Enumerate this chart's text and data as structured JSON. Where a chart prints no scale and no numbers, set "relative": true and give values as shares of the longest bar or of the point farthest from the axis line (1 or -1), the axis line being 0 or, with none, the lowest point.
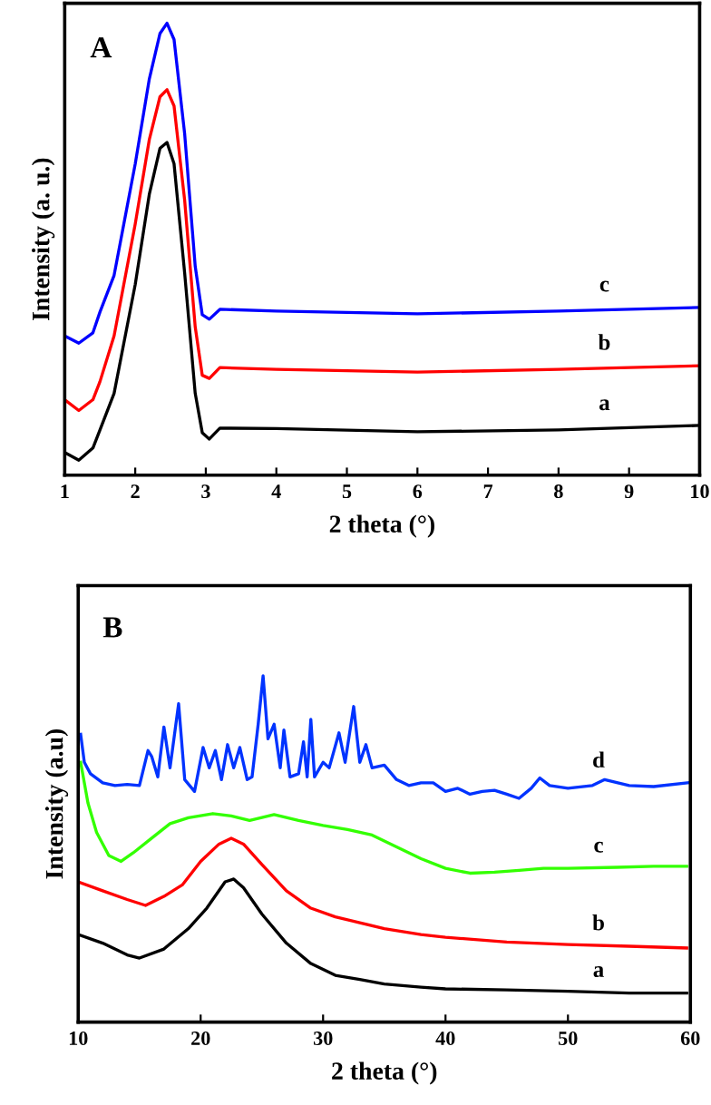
{
  "chart_data": [
    {
      "type": "line",
      "title": "A",
      "xlabel": "2 theta (°)",
      "ylabel": "Intensity (a. u.)",
      "relative": true,
      "tick_labels": "x",
      "grid": false,
      "legend": false,
      "xlim": [
        1,
        10
      ],
      "xticks": [
        1,
        2,
        3,
        4,
        5,
        6,
        7,
        8,
        9,
        10
      ],
      "series": [
        {
          "name": "a",
          "color": "#000000",
          "x": [
            1,
            1.2,
            1.4,
            1.5,
            1.7,
            2.0,
            2.2,
            2.35,
            2.45,
            2.55,
            2.7,
            2.85,
            2.95,
            3.05,
            3.2,
            4,
            6,
            8,
            10
          ],
          "values": [
            0.05,
            0.033,
            0.06,
            0.1,
            0.181,
            0.422,
            0.622,
            0.723,
            0.736,
            0.689,
            0.448,
            0.181,
            0.094,
            0.08,
            0.104,
            0.103,
            0.096,
            0.1,
            0.11
          ]
        },
        {
          "name": "b",
          "color": "#ff0000",
          "x": [
            1,
            1.2,
            1.4,
            1.5,
            1.7,
            2.0,
            2.2,
            2.35,
            2.45,
            2.55,
            2.7,
            2.85,
            2.95,
            3.05,
            3.2,
            4,
            6,
            8,
            10
          ],
          "values": [
            0.167,
            0.143,
            0.167,
            0.207,
            0.308,
            0.556,
            0.743,
            0.837,
            0.853,
            0.817,
            0.609,
            0.328,
            0.221,
            0.214,
            0.238,
            0.234,
            0.228,
            0.234,
            0.242
          ]
        },
        {
          "name": "c",
          "color": "#0000ff",
          "x": [
            1,
            1.2,
            1.4,
            1.5,
            1.7,
            2.0,
            2.2,
            2.35,
            2.45,
            2.55,
            2.7,
            2.85,
            2.95,
            3.05,
            3.2,
            4,
            6,
            8,
            10
          ],
          "values": [
            0.308,
            0.292,
            0.315,
            0.361,
            0.442,
            0.689,
            0.877,
            0.977,
            1.0,
            0.964,
            0.756,
            0.462,
            0.355,
            0.345,
            0.367,
            0.363,
            0.357,
            0.363,
            0.371
          ]
        }
      ]
    },
    {
      "type": "line",
      "title": "B",
      "xlabel": "2 theta (°)",
      "ylabel": "Intensity (a.u)",
      "relative": true,
      "tick_labels": "x",
      "grid": false,
      "legend": false,
      "xlim": [
        10,
        60
      ],
      "xticks": [
        10,
        20,
        30,
        40,
        50,
        60
      ],
      "series": [
        {
          "name": "a",
          "color": "#000000",
          "x": [
            10,
            12,
            14,
            15,
            17,
            19,
            20.5,
            22,
            22.7,
            23.5,
            25,
            27,
            29,
            31,
            33,
            35,
            38,
            40,
            45,
            50,
            55,
            59.7
          ],
          "values": [
            0.253,
            0.228,
            0.194,
            0.185,
            0.211,
            0.27,
            0.329,
            0.405,
            0.413,
            0.388,
            0.312,
            0.228,
            0.169,
            0.135,
            0.123,
            0.11,
            0.101,
            0.096,
            0.093,
            0.089,
            0.084,
            0.084
          ]
        },
        {
          "name": "b",
          "color": "#ff0000",
          "x": [
            10,
            12,
            14,
            15.5,
            17,
            18.5,
            20,
            21.5,
            22.5,
            23.5,
            25,
            27,
            29,
            31,
            33,
            35,
            38,
            40,
            45,
            50,
            55,
            59.7
          ],
          "values": [
            0.405,
            0.379,
            0.354,
            0.337,
            0.363,
            0.396,
            0.464,
            0.514,
            0.531,
            0.514,
            0.455,
            0.379,
            0.329,
            0.304,
            0.287,
            0.27,
            0.253,
            0.245,
            0.231,
            0.224,
            0.219,
            0.214
          ]
        },
        {
          "name": "c",
          "color": "#33ff00",
          "x": [
            10.2,
            10.8,
            11.5,
            12.5,
            13.5,
            14.5,
            16,
            17.5,
            19,
            21,
            22.5,
            24,
            26,
            28,
            30,
            32,
            34,
            36,
            38,
            40,
            42,
            44,
            46,
            48,
            50,
            54,
            57,
            59.7
          ],
          "values": [
            0.75,
            0.632,
            0.548,
            0.481,
            0.464,
            0.489,
            0.531,
            0.573,
            0.59,
            0.602,
            0.595,
            0.582,
            0.599,
            0.582,
            0.568,
            0.556,
            0.54,
            0.506,
            0.472,
            0.444,
            0.43,
            0.433,
            0.438,
            0.444,
            0.444,
            0.447,
            0.45,
            0.45
          ]
        },
        {
          "name": "d",
          "color": "#0033ff",
          "x": [
            10.2,
            10.5,
            11,
            12,
            13,
            14,
            15,
            15.7,
            16,
            16.5,
            17,
            17.5,
            18.2,
            18.7,
            19.5,
            20.2,
            20.7,
            21.2,
            21.7,
            22.2,
            22.7,
            23.2,
            23.8,
            24.2,
            24.7,
            25.1,
            25.5,
            26,
            26.5,
            26.8,
            27.3,
            28,
            28.4,
            28.7,
            29,
            29.3,
            30,
            30.5,
            31.3,
            31.8,
            32.5,
            33,
            33.5,
            34,
            35,
            36,
            37,
            38,
            39,
            40,
            41,
            42,
            43,
            44,
            45,
            46,
            47,
            47.7,
            48.5,
            50,
            52,
            53,
            55,
            57,
            59.8
          ],
          "values": [
            0.831,
            0.75,
            0.717,
            0.691,
            0.683,
            0.686,
            0.683,
            0.784,
            0.767,
            0.708,
            0.852,
            0.734,
            0.919,
            0.7,
            0.666,
            0.793,
            0.734,
            0.784,
            0.7,
            0.801,
            0.734,
            0.793,
            0.7,
            0.708,
            0.86,
            1.0,
            0.818,
            0.86,
            0.734,
            0.843,
            0.708,
            0.717,
            0.809,
            0.708,
            0.874,
            0.708,
            0.75,
            0.734,
            0.835,
            0.75,
            0.911,
            0.75,
            0.801,
            0.734,
            0.742,
            0.7,
            0.683,
            0.691,
            0.691,
            0.666,
            0.675,
            0.658,
            0.666,
            0.669,
            0.658,
            0.646,
            0.675,
            0.705,
            0.683,
            0.675,
            0.683,
            0.7,
            0.683,
            0.68,
            0.691
          ]
        }
      ]
    }
  ]
}
